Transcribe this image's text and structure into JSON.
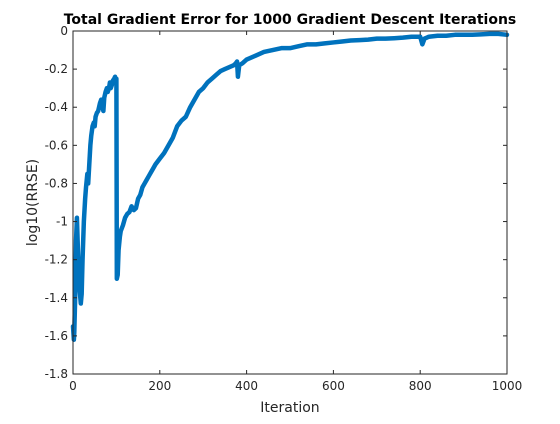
{
  "chart_data": {
    "type": "line",
    "title": "Total Gradient Error for 1000 Gradient Descent Iterations",
    "xlabel": "Iteration",
    "ylabel": "log10(RRSE)",
    "xlim": [
      0,
      1000
    ],
    "ylim": [
      -1.8,
      0
    ],
    "xticks": [
      "0",
      "200",
      "400",
      "600",
      "800",
      "1000"
    ],
    "yticks": [
      "0",
      "-0.2",
      "-0.4",
      "-0.6",
      "-0.8",
      "-1",
      "-1.2",
      "-1.4",
      "-1.6",
      "-1.8"
    ],
    "grid": false,
    "series": [
      {
        "color": "#0072BD",
        "x": [
          0,
          2,
          3,
          5,
          7,
          9,
          10,
          12,
          15,
          18,
          20,
          22,
          25,
          28,
          30,
          33,
          35,
          37,
          40,
          42,
          45,
          48,
          50,
          52,
          55,
          58,
          60,
          62,
          65,
          68,
          70,
          72,
          75,
          78,
          80,
          83,
          85,
          87,
          90,
          92,
          95,
          97,
          98,
          100,
          101,
          103,
          105,
          108,
          110,
          115,
          120,
          125,
          130,
          135,
          140,
          145,
          150,
          155,
          160,
          165,
          170,
          175,
          180,
          185,
          190,
          200,
          210,
          220,
          230,
          240,
          250,
          255,
          260,
          270,
          280,
          290,
          300,
          310,
          320,
          330,
          340,
          350,
          360,
          370,
          375,
          378,
          380,
          383,
          390,
          400,
          420,
          440,
          460,
          480,
          500,
          520,
          540,
          560,
          580,
          600,
          620,
          640,
          660,
          680,
          700,
          720,
          740,
          760,
          780,
          800,
          805,
          810,
          815,
          820,
          840,
          860,
          880,
          900,
          920,
          940,
          960,
          980,
          1000
        ],
        "y": [
          -1.55,
          -1.62,
          -1.58,
          -1.4,
          -1.1,
          -0.98,
          -1.05,
          -1.2,
          -1.35,
          -1.43,
          -1.38,
          -1.2,
          -1.0,
          -0.88,
          -0.82,
          -0.75,
          -0.8,
          -0.72,
          -0.6,
          -0.55,
          -0.5,
          -0.48,
          -0.5,
          -0.45,
          -0.43,
          -0.42,
          -0.4,
          -0.38,
          -0.36,
          -0.4,
          -0.42,
          -0.35,
          -0.32,
          -0.3,
          -0.32,
          -0.3,
          -0.27,
          -0.3,
          -0.28,
          -0.26,
          -0.25,
          -0.24,
          -0.26,
          -0.25,
          -1.3,
          -1.28,
          -1.15,
          -1.08,
          -1.05,
          -1.02,
          -0.98,
          -0.96,
          -0.95,
          -0.92,
          -0.94,
          -0.93,
          -0.88,
          -0.86,
          -0.82,
          -0.8,
          -0.78,
          -0.76,
          -0.74,
          -0.72,
          -0.7,
          -0.67,
          -0.64,
          -0.6,
          -0.56,
          -0.5,
          -0.47,
          -0.46,
          -0.45,
          -0.4,
          -0.36,
          -0.32,
          -0.3,
          -0.27,
          -0.25,
          -0.23,
          -0.21,
          -0.2,
          -0.19,
          -0.18,
          -0.17,
          -0.16,
          -0.24,
          -0.18,
          -0.17,
          -0.15,
          -0.13,
          -0.11,
          -0.1,
          -0.09,
          -0.09,
          -0.08,
          -0.07,
          -0.07,
          -0.065,
          -0.06,
          -0.055,
          -0.05,
          -0.048,
          -0.045,
          -0.04,
          -0.04,
          -0.038,
          -0.035,
          -0.03,
          -0.03,
          -0.07,
          -0.04,
          -0.035,
          -0.03,
          -0.025,
          -0.025,
          -0.02,
          -0.02,
          -0.02,
          -0.018,
          -0.015,
          -0.015,
          -0.02
        ]
      }
    ]
  }
}
